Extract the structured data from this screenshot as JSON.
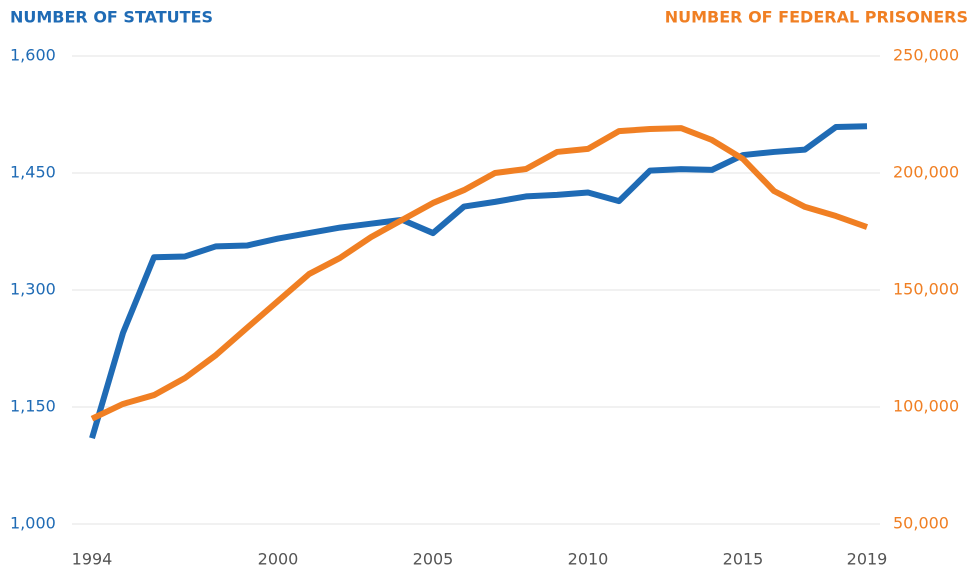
{
  "chart_data": {
    "type": "line",
    "y_label": "NUMBER OF STATUTES",
    "y2_label": "NUMBER OF FEDERAL PRISONERS",
    "x": [
      1994,
      1995,
      1996,
      1997,
      1998,
      1999,
      2000,
      2001,
      2002,
      2003,
      2004,
      2005,
      2006,
      2007,
      2008,
      2009,
      2010,
      2011,
      2012,
      2013,
      2014,
      2015,
      2016,
      2017,
      2018,
      2019
    ],
    "xlim": [
      1994,
      2019
    ],
    "xticks": [
      1994,
      2000,
      2005,
      2010,
      2015,
      2019
    ],
    "ylim": [
      1000,
      1600
    ],
    "yticks": [
      {
        "value": 1000,
        "label": "1,000"
      },
      {
        "value": 1150,
        "label": "1,150"
      },
      {
        "value": 1300,
        "label": "1,300"
      },
      {
        "value": 1450,
        "label": "1,450"
      },
      {
        "value": 1600,
        "label": "1,600"
      }
    ],
    "y2lim": [
      50000,
      250000
    ],
    "y2ticks": [
      {
        "value": 50000,
        "label": "50,000"
      },
      {
        "value": 100000,
        "label": "100,000"
      },
      {
        "value": 150000,
        "label": "150,000"
      },
      {
        "value": 200000,
        "label": "200,000"
      },
      {
        "value": 250000,
        "label": "250,000"
      }
    ],
    "grid": true,
    "series": [
      {
        "color": "#1f6bb5",
        "values": [
          1110,
          1245,
          1342,
          1343,
          1356,
          1357,
          1366,
          1373,
          1380,
          1385,
          1390,
          1373,
          1407,
          1413,
          1420,
          1422,
          1425,
          1414,
          1453,
          1455,
          1454,
          1473,
          1477,
          1480,
          1509,
          1510
        ]
      },
      {
        "color": "#f07f23",
        "axis": "y2",
        "values": [
          95000,
          101300,
          105100,
          112400,
          122200,
          133800,
          145300,
          156800,
          163700,
          172600,
          179900,
          187200,
          192700,
          200000,
          201700,
          209000,
          210300,
          217900,
          218800,
          219200,
          214100,
          206000,
          192300,
          185500,
          181600,
          176900
        ]
      }
    ]
  }
}
